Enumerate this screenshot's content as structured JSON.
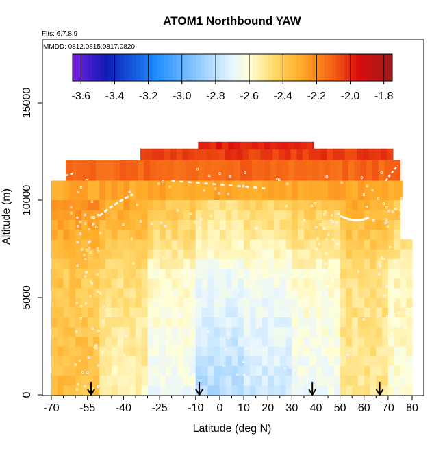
{
  "chart_data": {
    "type": "heatmap",
    "title": "ATOM1 Northbound YAW",
    "flights_label": "Flts: 6,7,8,9",
    "dates_label": "MMDD: 0812,0815,0817,0820",
    "xlabel": "Latitude (deg N)",
    "ylabel": "Altitude (m)",
    "xlim": [
      -70,
      80
    ],
    "ylim": [
      0,
      17500
    ],
    "x_ticks_major": [
      -70,
      -55,
      -40,
      -25,
      -10,
      0,
      10,
      20,
      30,
      40,
      50,
      60,
      70,
      80
    ],
    "x_tick_labels": [
      "-70",
      "-55",
      "-40",
      "-25",
      "-10",
      "0",
      "10",
      "20",
      "30",
      "40",
      "50",
      "60",
      "70",
      "80"
    ],
    "x_ticks_minor": [
      -65,
      -60,
      -50,
      -45,
      -35,
      -30,
      -20,
      -15,
      -5,
      5,
      15,
      25,
      35,
      45,
      55,
      65,
      75
    ],
    "y_ticks": [
      0,
      5000,
      10000,
      15000
    ],
    "y_tick_labels": [
      "0",
      "5000",
      "10000",
      "15000"
    ],
    "colorbar": {
      "min": -3.65,
      "max": -1.75,
      "ticks": [
        -3.6,
        -3.4,
        -3.2,
        -3.0,
        -2.8,
        -2.6,
        -2.4,
        -2.2,
        -2.0,
        -1.8
      ],
      "tick_labels": [
        "-3.6",
        "-3.4",
        "-3.2",
        "-3.0",
        "-2.8",
        "-2.6",
        "-2.4",
        "-2.2",
        "-2.0",
        "-1.8"
      ],
      "colors": [
        "#7b1fe0",
        "#0f1bb5",
        "#1f8fff",
        "#bfe4ff",
        "#ffffd6",
        "#ffd25a",
        "#ff9c1a",
        "#e01a0a",
        "#9e1a1a"
      ]
    },
    "color_scale": [
      {
        "value": -3.65,
        "color": "#7b1fe0"
      },
      {
        "value": -3.45,
        "color": "#0f1bb5"
      },
      {
        "value": -3.15,
        "color": "#1f8fff"
      },
      {
        "value": -2.85,
        "color": "#a8d6ff"
      },
      {
        "value": -2.7,
        "color": "#e8f6ff"
      },
      {
        "value": -2.6,
        "color": "#ffffd6"
      },
      {
        "value": -2.45,
        "color": "#ffd86a"
      },
      {
        "value": -2.3,
        "color": "#ffae2a"
      },
      {
        "value": -2.1,
        "color": "#f56014"
      },
      {
        "value": -1.95,
        "color": "#d90d0d"
      },
      {
        "value": -1.75,
        "color": "#9e1a1a"
      }
    ],
    "profile_arrows_lat": [
      -53.5,
      -8.5,
      38.5,
      66.5
    ],
    "top_layers": [
      {
        "lat_range": [
          -9,
          39
        ],
        "alt_range": [
          12600,
          13000
        ],
        "value": -1.98
      },
      {
        "lat_range": [
          -33,
          72
        ],
        "alt_range": [
          12050,
          12650
        ],
        "value": -2.03
      },
      {
        "lat_range": [
          -64,
          75
        ],
        "alt_range": [
          11000,
          12050
        ],
        "value": -2.12
      },
      {
        "lat_range": [
          -70,
          76
        ],
        "alt_range": [
          10000,
          11000
        ],
        "value": -2.28
      }
    ],
    "lat_bands": [
      {
        "lat_range": [
          -70,
          -50
        ],
        "surface": -2.36,
        "mid": -2.4
      },
      {
        "lat_range": [
          -50,
          -30
        ],
        "surface": -2.55,
        "mid": -2.46
      },
      {
        "lat_range": [
          -30,
          -10
        ],
        "surface": -2.66,
        "mid": -2.56
      },
      {
        "lat_range": [
          -10,
          10
        ],
        "surface": -2.82,
        "mid": -2.64
      },
      {
        "lat_range": [
          10,
          30
        ],
        "surface": -2.76,
        "mid": -2.62
      },
      {
        "lat_range": [
          30,
          50
        ],
        "surface": -2.66,
        "mid": -2.58
      },
      {
        "lat_range": [
          50,
          70
        ],
        "surface": -2.5,
        "mid": -2.48
      },
      {
        "lat_range": [
          70,
          80
        ],
        "surface": -2.6,
        "mid": -2.55
      }
    ]
  }
}
